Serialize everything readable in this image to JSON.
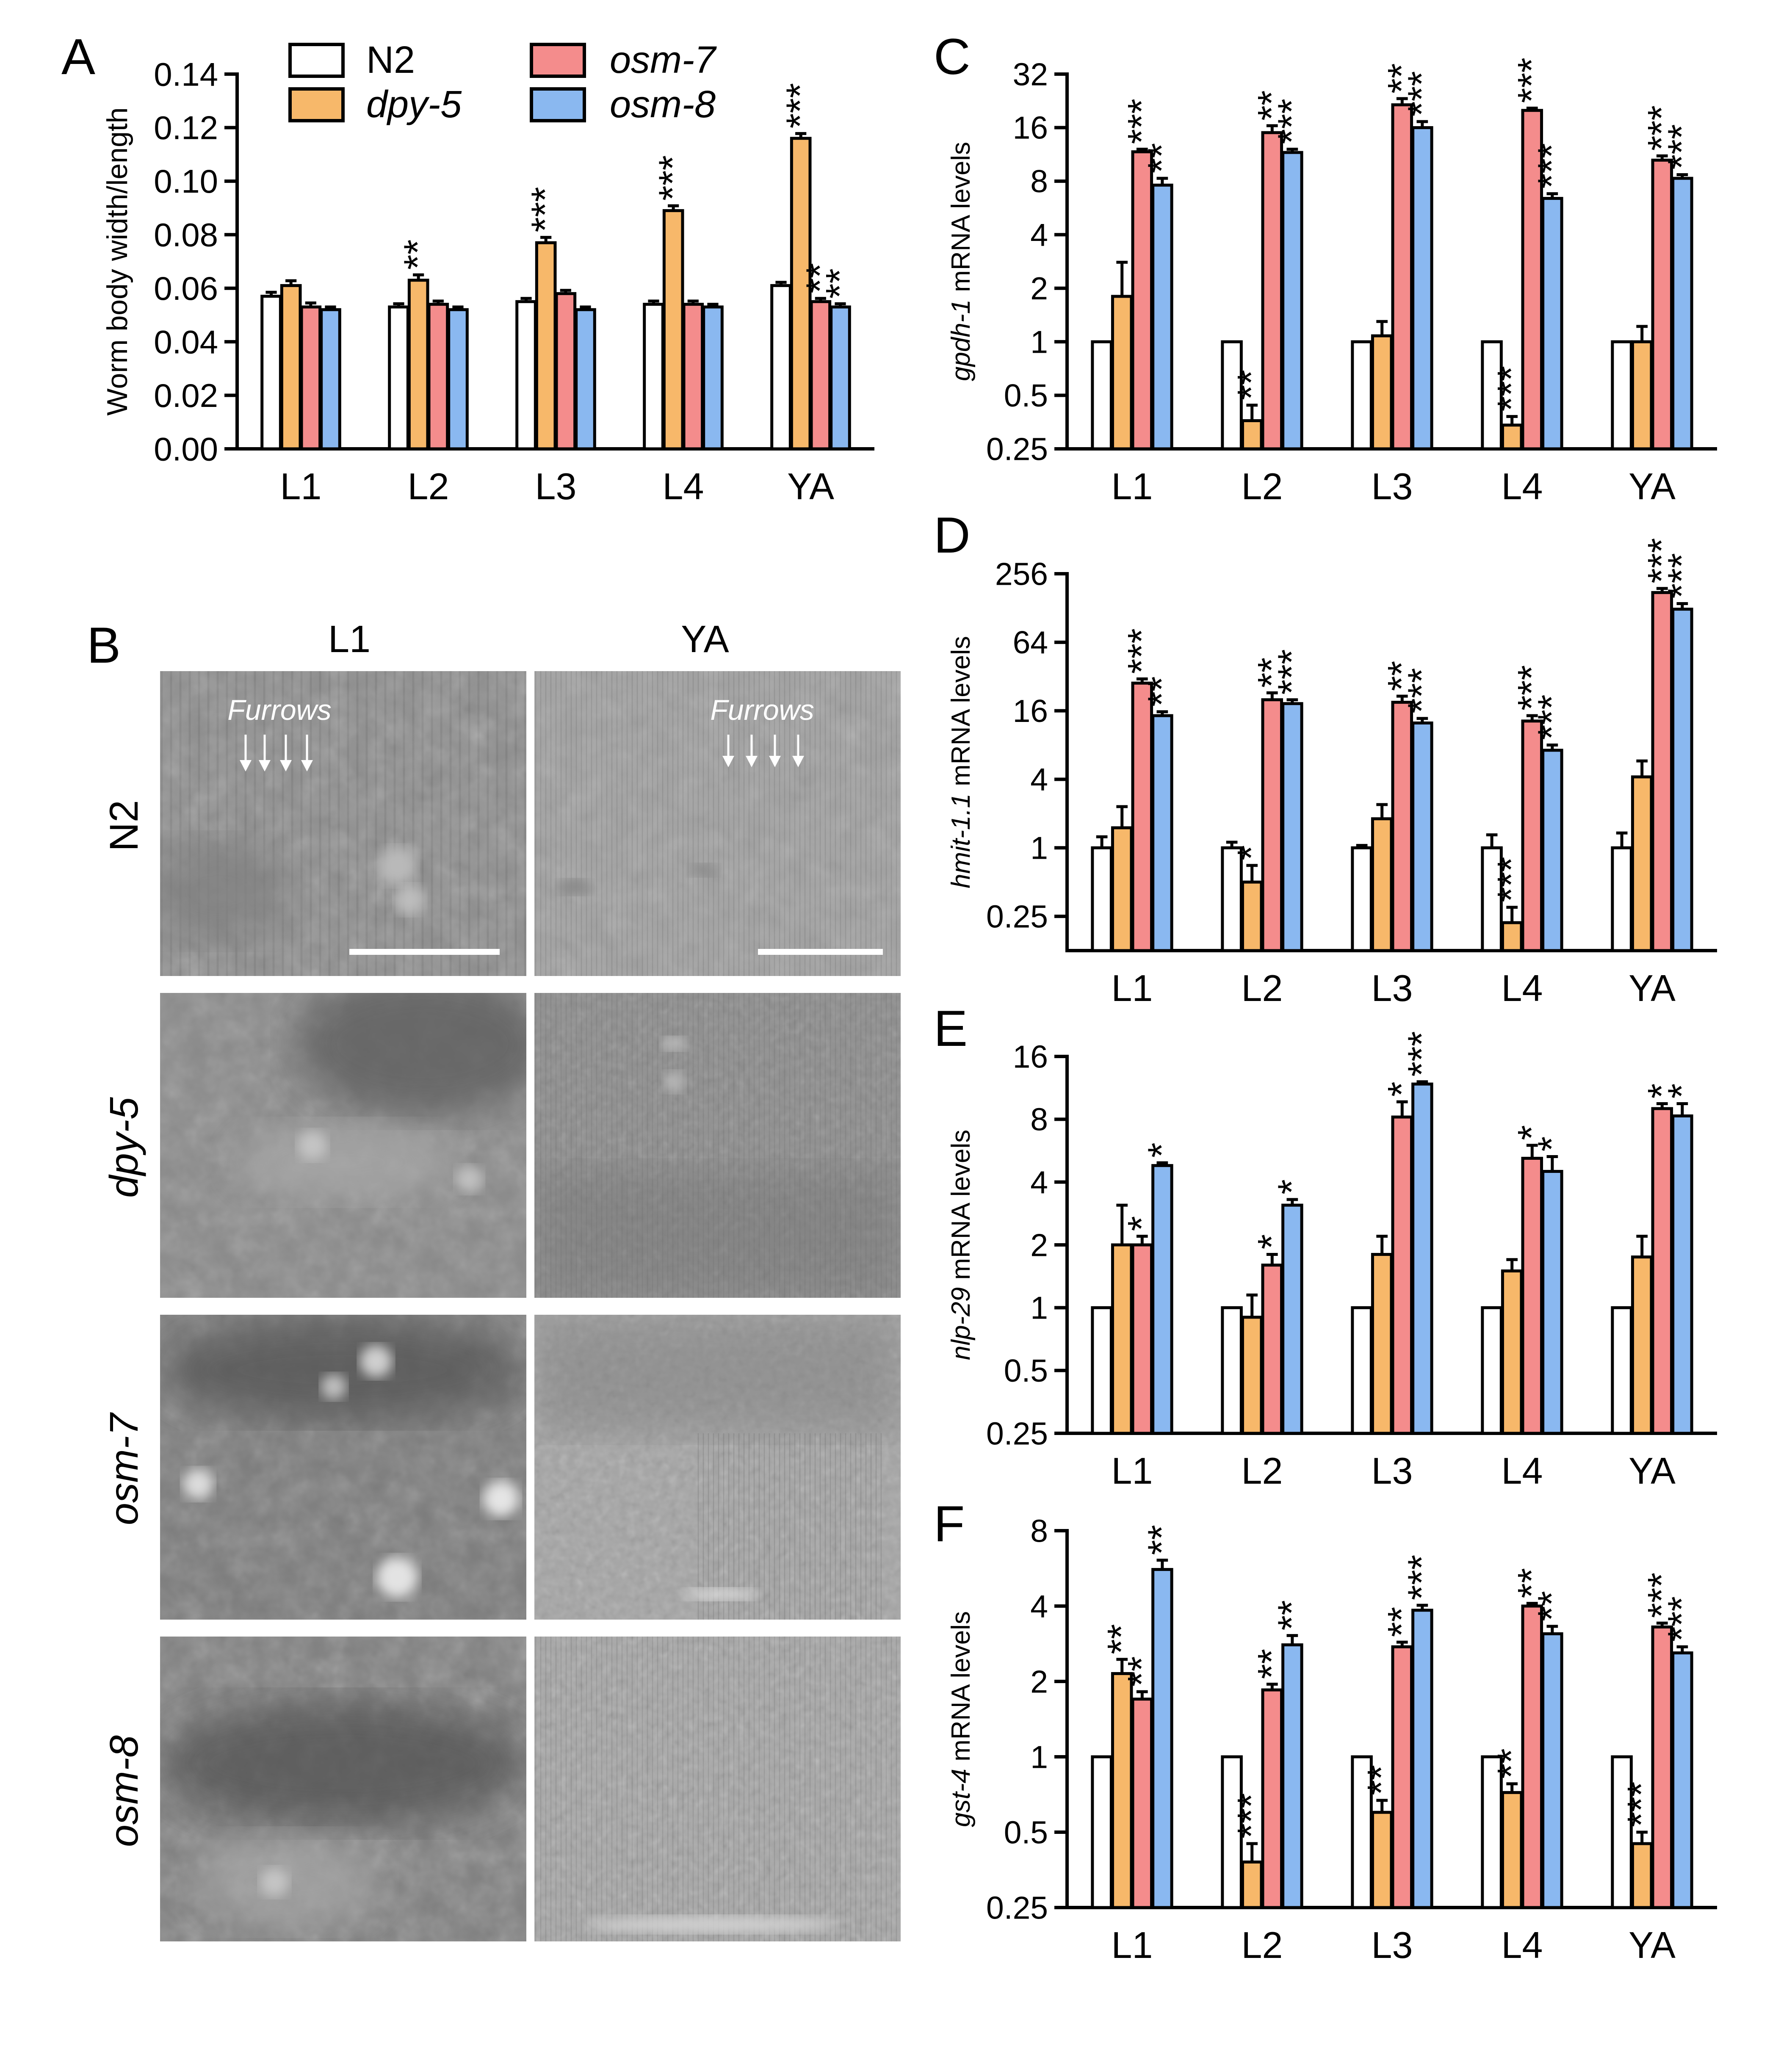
{
  "colors": {
    "N2": "#ffffff",
    "dpy-5": "#f7b86a",
    "osm-7": "#f48c8c",
    "osm-8": "#8ab8f0"
  },
  "legend": [
    {
      "key": "N2",
      "label": "N2",
      "italic": false
    },
    {
      "key": "dpy-5",
      "label": "dpy-5",
      "italic": true
    },
    {
      "key": "osm-7",
      "label": "osm-7",
      "italic": true
    },
    {
      "key": "osm-8",
      "label": "osm-8",
      "italic": true
    }
  ],
  "panel_labels": {
    "A": "A",
    "B": "B",
    "C": "C",
    "D": "D",
    "E": "E",
    "F": "F"
  },
  "chart_data": [
    {
      "panel": "A",
      "type": "bar",
      "scale": "linear",
      "ylabel": "Worm body width/length",
      "ylabel_gene": "",
      "ylim": [
        0,
        0.14
      ],
      "yticks": [
        0.0,
        0.02,
        0.04,
        0.06,
        0.08,
        0.1,
        0.12,
        0.14
      ],
      "ytick_labels": [
        "0.00",
        "0.02",
        "0.04",
        "0.06",
        "0.08",
        "0.10",
        "0.12",
        "0.14"
      ],
      "categories": [
        "L1",
        "L2",
        "L3",
        "L4",
        "YA"
      ],
      "series": [
        {
          "name": "N2",
          "values": [
            0.057,
            0.053,
            0.055,
            0.054,
            0.061
          ],
          "errors": [
            0.0015,
            0.0012,
            0.0012,
            0.0012,
            0.0012
          ],
          "sig": [
            "",
            "",
            "",
            "",
            ""
          ]
        },
        {
          "name": "dpy-5",
          "values": [
            0.061,
            0.063,
            0.077,
            0.089,
            0.116
          ],
          "errors": [
            0.0018,
            0.002,
            0.002,
            0.0018,
            0.0018
          ],
          "sig": [
            "",
            "**",
            "***",
            "***",
            "***"
          ]
        },
        {
          "name": "osm-7",
          "values": [
            0.053,
            0.054,
            0.058,
            0.054,
            0.055
          ],
          "errors": [
            0.0015,
            0.0012,
            0.0012,
            0.0012,
            0.0012
          ],
          "sig": [
            "",
            "",
            "",
            "",
            "**"
          ]
        },
        {
          "name": "osm-8",
          "values": [
            0.052,
            0.052,
            0.052,
            0.053,
            0.053
          ],
          "errors": [
            0.001,
            0.001,
            0.001,
            0.001,
            0.0012
          ],
          "sig": [
            "",
            "",
            "",
            "",
            "**"
          ]
        }
      ]
    },
    {
      "panel": "C",
      "type": "bar",
      "scale": "log2",
      "ylabel": " mRNA levels",
      "ylabel_gene": "gpdh-1",
      "ylim": [
        0.25,
        32
      ],
      "yticks": [
        0.25,
        0.5,
        1,
        2,
        4,
        8,
        16,
        32
      ],
      "ytick_labels": [
        "0.25",
        "0.5",
        "1",
        "2",
        "4",
        "8",
        "16",
        "32"
      ],
      "categories": [
        "L1",
        "L2",
        "L3",
        "L4",
        "YA"
      ],
      "series": [
        {
          "name": "N2",
          "values": [
            1,
            1,
            1,
            1,
            1
          ],
          "errors": [
            0,
            0,
            0,
            0,
            0
          ],
          "sig": [
            "",
            "",
            "",
            "",
            ""
          ]
        },
        {
          "name": "dpy-5",
          "values": [
            1.8,
            0.36,
            1.08,
            0.34,
            1.0
          ],
          "errors": [
            1.0,
            0.08,
            0.22,
            0.04,
            0.22
          ],
          "sig": [
            "",
            "**",
            "",
            "***",
            ""
          ]
        },
        {
          "name": "osm-7",
          "values": [
            11.7,
            15,
            21.5,
            20,
            10.5
          ],
          "errors": [
            0.4,
            1.4,
            1.8,
            0.6,
            0.6
          ],
          "sig": [
            "***",
            "**",
            "**",
            "***",
            "***"
          ]
        },
        {
          "name": "osm-8",
          "values": [
            7.6,
            11.6,
            16,
            6.4,
            8.3
          ],
          "errors": [
            0.7,
            0.5,
            1.3,
            0.4,
            0.4
          ],
          "sig": [
            "**",
            "***",
            "***",
            "***",
            "***"
          ]
        }
      ]
    },
    {
      "panel": "D",
      "type": "bar",
      "scale": "log2",
      "ylabel": " mRNA levels",
      "ylabel_gene": "hmit-1.1",
      "ylim": [
        0.125,
        256
      ],
      "yticks": [
        0.25,
        1,
        4,
        16,
        64,
        256
      ],
      "ytick_labels": [
        "0.25",
        "1",
        "4",
        "16",
        "64",
        "256"
      ],
      "categories": [
        "L1",
        "L2",
        "L3",
        "L4",
        "YA"
      ],
      "series": [
        {
          "name": "N2",
          "values": [
            1,
            1,
            1,
            1,
            1
          ],
          "errors": [
            0.25,
            0.12,
            0.05,
            0.3,
            0.35
          ],
          "sig": [
            "",
            "",
            "",
            "",
            ""
          ]
        },
        {
          "name": "dpy-5",
          "values": [
            1.5,
            0.5,
            1.8,
            0.22,
            4.2
          ],
          "errors": [
            0.8,
            0.2,
            0.6,
            0.08,
            1.6
          ],
          "sig": [
            "",
            "*",
            "",
            "***",
            ""
          ]
        },
        {
          "name": "osm-7",
          "values": [
            28,
            20,
            19,
            13,
            175
          ],
          "errors": [
            2.5,
            3,
            2.5,
            1.5,
            15
          ],
          "sig": [
            "***",
            "**",
            "**",
            "***",
            "***"
          ]
        },
        {
          "name": "osm-8",
          "values": [
            14.5,
            18.5,
            12.5,
            7.2,
            125
          ],
          "errors": [
            1.2,
            1.5,
            1.2,
            0.8,
            15
          ],
          "sig": [
            "**",
            "***",
            "***",
            "***",
            "***"
          ]
        }
      ]
    },
    {
      "panel": "E",
      "type": "bar",
      "scale": "log2",
      "ylabel": " mRNA levels",
      "ylabel_gene": "nlp-29",
      "ylim": [
        0.25,
        16
      ],
      "yticks": [
        0.25,
        0.5,
        1,
        2,
        4,
        8,
        16
      ],
      "ytick_labels": [
        "0.25",
        "0.5",
        "1",
        "2",
        "4",
        "8",
        "16"
      ],
      "categories": [
        "L1",
        "L2",
        "L3",
        "L4",
        "YA"
      ],
      "series": [
        {
          "name": "N2",
          "values": [
            1,
            1,
            1,
            1,
            1
          ],
          "errors": [
            0,
            0,
            0,
            0,
            0
          ],
          "sig": [
            "",
            "",
            "",
            "",
            ""
          ]
        },
        {
          "name": "dpy-5",
          "values": [
            2.0,
            0.9,
            1.8,
            1.5,
            1.75
          ],
          "errors": [
            1.1,
            0.25,
            0.4,
            0.2,
            0.45
          ],
          "sig": [
            "",
            "",
            "",
            "",
            ""
          ]
        },
        {
          "name": "osm-7",
          "values": [
            2.0,
            1.6,
            8.2,
            5.2,
            9.0
          ],
          "errors": [
            0.2,
            0.2,
            1.5,
            0.8,
            0.5
          ],
          "sig": [
            "*",
            "*",
            "*",
            "*",
            "*"
          ]
        },
        {
          "name": "osm-8",
          "values": [
            4.8,
            3.1,
            11.8,
            4.5,
            8.3
          ],
          "errors": [
            0.15,
            0.2,
            0.3,
            0.8,
            1.2
          ],
          "sig": [
            "*",
            "*",
            "***",
            "*",
            "*"
          ]
        }
      ]
    },
    {
      "panel": "F",
      "type": "bar",
      "scale": "log2",
      "ylabel": " mRNA levels",
      "ylabel_gene": "gst-4",
      "ylim": [
        0.25,
        8
      ],
      "yticks": [
        0.25,
        0.5,
        1,
        2,
        4,
        8
      ],
      "ytick_labels": [
        "0.25",
        "0.5",
        "1",
        "2",
        "4",
        "8"
      ],
      "categories": [
        "L1",
        "L2",
        "L3",
        "L4",
        "YA"
      ],
      "series": [
        {
          "name": "N2",
          "values": [
            1,
            1,
            1,
            1,
            1
          ],
          "errors": [
            0,
            0,
            0,
            0,
            0
          ],
          "sig": [
            "",
            "",
            "",
            "",
            ""
          ]
        },
        {
          "name": "dpy-5",
          "values": [
            2.15,
            0.38,
            0.6,
            0.72,
            0.45
          ],
          "errors": [
            0.3,
            0.07,
            0.07,
            0.06,
            0.05
          ],
          "sig": [
            "**",
            "***",
            "**",
            "**",
            "***"
          ]
        },
        {
          "name": "osm-7",
          "values": [
            1.7,
            1.85,
            2.75,
            4.0,
            3.3
          ],
          "errors": [
            0.12,
            0.1,
            0.12,
            0.1,
            0.12
          ],
          "sig": [
            "**",
            "**",
            "**",
            "**",
            "***"
          ]
        },
        {
          "name": "osm-8",
          "values": [
            5.6,
            2.8,
            3.85,
            3.1,
            2.6
          ],
          "errors": [
            0.5,
            0.25,
            0.18,
            0.22,
            0.15
          ],
          "sig": [
            "**",
            "**",
            "***",
            "**",
            "***"
          ]
        }
      ]
    }
  ],
  "micrographs": {
    "column_labels": [
      "L1",
      "YA"
    ],
    "row_labels": [
      "N2",
      "dpy-5",
      "osm-7",
      "osm-8"
    ],
    "row_italic": [
      false,
      true,
      true,
      true
    ],
    "annotation": "Furrows"
  }
}
